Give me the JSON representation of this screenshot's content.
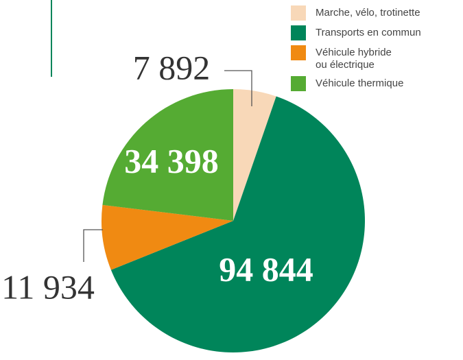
{
  "chart_data": {
    "type": "pie",
    "categories": [
      "Marche, vélo, trotinette",
      "Transports en commun",
      "Véhicule hybride\nou électrique",
      "Véhicule thermique"
    ],
    "values": [
      7892,
      94844,
      11934,
      34398
    ],
    "value_labels": [
      "7 892",
      "94 844",
      "11 934",
      "34 398"
    ],
    "colors": [
      "#f8d8b8",
      "#00855a",
      "#f08a12",
      "#55ab33"
    ],
    "legend": "top-right"
  }
}
